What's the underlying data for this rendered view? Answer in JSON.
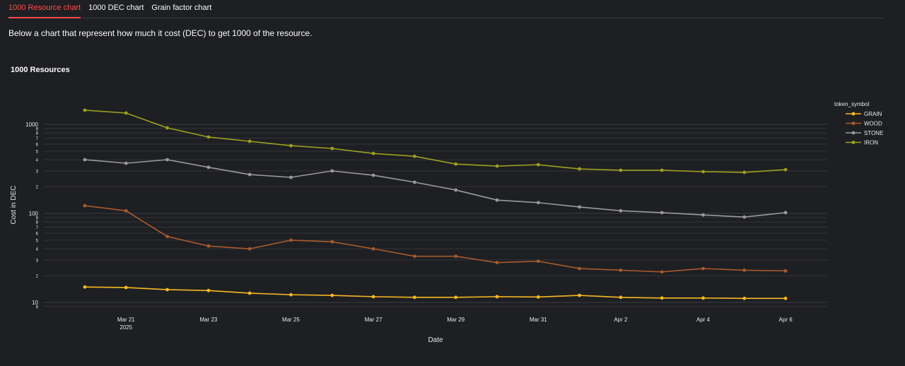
{
  "tabs": [
    {
      "label": "1000 Resource chart",
      "active": true
    },
    {
      "label": "1000 DEC chart",
      "active": false
    },
    {
      "label": "Grain factor chart",
      "active": false
    }
  ],
  "description": "Below a chart that represent how much it cost (DEC) to get 1000 of the resource.",
  "chart_data": {
    "type": "line",
    "title": "1000 Resources",
    "xlabel": "Date",
    "ylabel": "Cost in DEC",
    "yscale": "log",
    "ylim": [
      8.5,
      1600
    ],
    "legend_title": "token_symbol",
    "legend_position": "top-right",
    "x": [
      "2025-03-20",
      "2025-03-21",
      "2025-03-22",
      "2025-03-23",
      "2025-03-24",
      "2025-03-25",
      "2025-03-26",
      "2025-03-27",
      "2025-03-28",
      "2025-03-29",
      "2025-03-30",
      "2025-03-31",
      "2025-04-01",
      "2025-04-02",
      "2025-04-03",
      "2025-04-04",
      "2025-04-05",
      "2025-04-06"
    ],
    "x_ticks": [
      {
        "label": "Mar 21",
        "sub": "2025",
        "day": 1
      },
      {
        "label": "Mar 23",
        "day": 3
      },
      {
        "label": "Mar 25",
        "day": 5
      },
      {
        "label": "Mar 27",
        "day": 7
      },
      {
        "label": "Mar 29",
        "day": 9
      },
      {
        "label": "Mar 31",
        "day": 11
      },
      {
        "label": "Apr 2",
        "day": 13
      },
      {
        "label": "Apr 4",
        "day": 15
      },
      {
        "label": "Apr 6",
        "day": 17
      }
    ],
    "y_ticks_major": [
      "10",
      "100",
      "1000"
    ],
    "y_ticks_minor": [
      "2",
      "3",
      "4",
      "5",
      "6",
      "7",
      "8",
      "9"
    ],
    "series": [
      {
        "name": "GRAIN",
        "color": "#f5b921",
        "values": [
          14.9,
          14.7,
          13.9,
          13.6,
          12.7,
          12.2,
          12.0,
          11.6,
          11.4,
          11.4,
          11.6,
          11.5,
          12.0,
          11.4,
          11.2,
          11.2,
          11.1,
          11.1
        ]
      },
      {
        "name": "WOOD",
        "color": "#a85a2a",
        "values": [
          122,
          107,
          55,
          43,
          40,
          50,
          48,
          40,
          33,
          33,
          28,
          29,
          24,
          23,
          22,
          24,
          23,
          22.6
        ]
      },
      {
        "name": "STONE",
        "color": "#9a9a9e",
        "values": [
          401,
          366,
          401,
          329,
          273,
          254,
          300,
          268,
          224,
          183,
          141,
          132,
          118,
          107,
          102,
          96,
          91,
          102
        ]
      },
      {
        "name": "IRON",
        "color": "#9ea01e",
        "values": [
          1442,
          1340,
          913,
          720,
          645,
          576,
          536,
          471,
          438,
          358,
          340,
          352,
          316,
          305,
          305,
          294,
          289,
          310
        ]
      }
    ]
  }
}
